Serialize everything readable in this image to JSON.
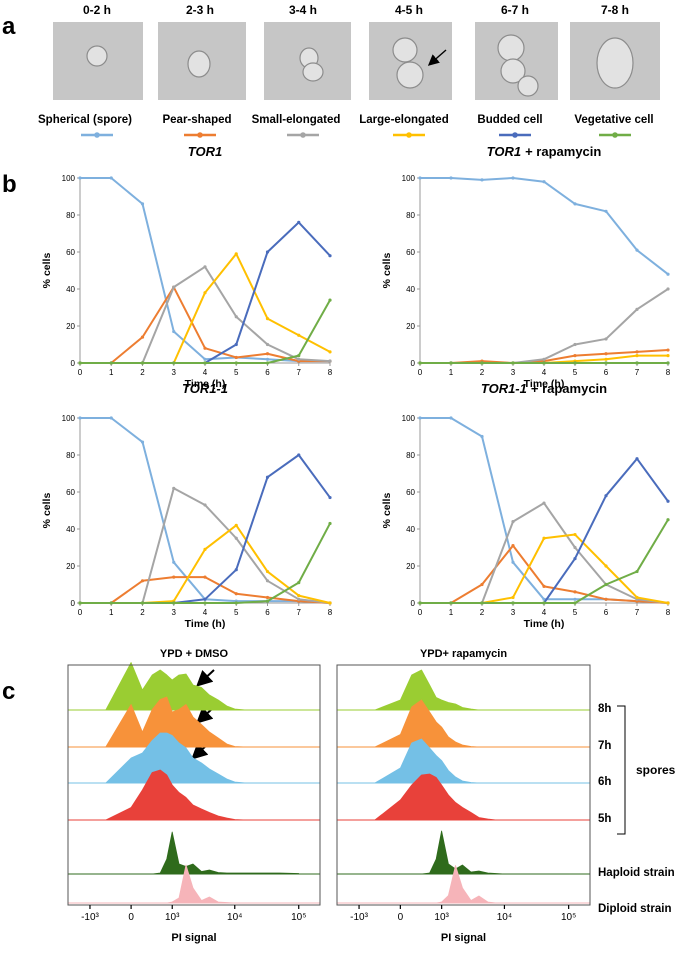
{
  "panel_labels": [
    "a",
    "b",
    "c"
  ],
  "stages": [
    {
      "time": "0-2 h",
      "label": "Spherical (spore)",
      "color": "#7eb0de"
    },
    {
      "time": "2-3 h",
      "label": "Pear-shaped",
      "color": "#ed7d31"
    },
    {
      "time": "3-4 h",
      "label": "Small-elongated",
      "color": "#a5a5a5"
    },
    {
      "time": "4-5 h",
      "label": "Large-elongated",
      "color": "#ffc000"
    },
    {
      "time": "6-7 h",
      "label": "Budded cell",
      "color": "#4a6cbc"
    },
    {
      "time": "7-8 h",
      "label": "Vegetative cell",
      "color": "#70ad47"
    }
  ],
  "flow_rows": [
    {
      "label": "8h",
      "color": "#9acd32"
    },
    {
      "label": "7h",
      "color": "#f7923a"
    },
    {
      "label": "6h",
      "color": "#74c0e6"
    },
    {
      "label": "5h",
      "color": "#e8413a"
    },
    {
      "label": "Haploid strain",
      "color": "#2f6b1c"
    },
    {
      "label": "Diploid strain",
      "color": "#f6b4b9"
    }
  ],
  "spores_label": "spores",
  "chart_data": [
    {
      "type": "line",
      "title_gene": "TOR1",
      "xlabel": "Time (h)",
      "ylabel": "% cells",
      "x": [
        0,
        1,
        2,
        3,
        4,
        5,
        6,
        7,
        8
      ],
      "xlim": [
        0,
        8
      ],
      "xticks": [
        0,
        1,
        2,
        3,
        4,
        5,
        6,
        7,
        8
      ],
      "ylim": [
        0,
        100
      ],
      "yticks": [
        0,
        20,
        40,
        60,
        80,
        100
      ],
      "series": [
        {
          "values": [
            100,
            100,
            86,
            17,
            2,
            3,
            2,
            1,
            1
          ]
        },
        {
          "values": [
            0,
            0,
            14,
            41,
            8,
            3,
            5,
            1,
            1
          ]
        },
        {
          "values": [
            0,
            0,
            0,
            41,
            52,
            25,
            10,
            2,
            1
          ]
        },
        {
          "values": [
            0,
            0,
            0,
            0,
            38,
            59,
            24,
            15,
            6
          ]
        },
        {
          "values": [
            0,
            0,
            0,
            0,
            0,
            10,
            60,
            76,
            58
          ]
        },
        {
          "values": [
            0,
            0,
            0,
            0,
            0,
            0,
            0,
            4,
            34
          ]
        }
      ]
    },
    {
      "type": "line",
      "title_gene": "TOR1",
      "title_treatment": "+ rapamycin",
      "xlabel": "Time (h)",
      "ylabel": "% cells",
      "x": [
        0,
        1,
        2,
        3,
        4,
        5,
        6,
        7,
        8
      ],
      "xlim": [
        0,
        8
      ],
      "xticks": [
        0,
        1,
        2,
        3,
        4,
        5,
        6,
        7,
        8
      ],
      "ylim": [
        0,
        100
      ],
      "yticks": [
        0,
        20,
        40,
        60,
        80,
        100
      ],
      "series": [
        {
          "values": [
            100,
            100,
            99,
            100,
            98,
            86,
            82,
            61,
            48
          ]
        },
        {
          "values": [
            0,
            0,
            1,
            0,
            1,
            4,
            5,
            6,
            7
          ]
        },
        {
          "values": [
            0,
            0,
            0,
            0,
            2,
            10,
            13,
            29,
            40
          ]
        },
        {
          "values": [
            0,
            0,
            0,
            0,
            0,
            1,
            2,
            4,
            4
          ]
        },
        {
          "values": [
            0,
            0,
            0,
            0,
            0,
            0,
            0,
            0,
            0
          ]
        },
        {
          "values": [
            0,
            0,
            0,
            0,
            0,
            0,
            0,
            0,
            0
          ]
        }
      ]
    },
    {
      "type": "line",
      "title_gene": "TOR1-1",
      "xlabel": "Time (h)",
      "ylabel": "% cells",
      "x": [
        0,
        1,
        2,
        3,
        4,
        5,
        6,
        7,
        8
      ],
      "xlim": [
        0,
        8
      ],
      "xticks": [
        0,
        1,
        2,
        3,
        4,
        5,
        6,
        7,
        8
      ],
      "ylim": [
        0,
        100
      ],
      "yticks": [
        0,
        20,
        40,
        60,
        80,
        100
      ],
      "series": [
        {
          "values": [
            100,
            100,
            87,
            22,
            2,
            1,
            1,
            1,
            0
          ]
        },
        {
          "values": [
            0,
            0,
            12,
            14,
            14,
            5,
            3,
            1,
            0
          ]
        },
        {
          "values": [
            0,
            0,
            0,
            62,
            53,
            35,
            12,
            2,
            0
          ]
        },
        {
          "values": [
            0,
            0,
            0,
            1,
            29,
            42,
            17,
            4,
            0
          ]
        },
        {
          "values": [
            0,
            0,
            0,
            0,
            2,
            18,
            68,
            80,
            57
          ]
        },
        {
          "values": [
            0,
            0,
            0,
            0,
            0,
            0,
            1,
            11,
            43
          ]
        }
      ]
    },
    {
      "type": "line",
      "title_gene": "TOR1-1",
      "title_treatment": "+ rapamycin",
      "xlabel": "Time (h)",
      "ylabel": "% cells",
      "x": [
        0,
        1,
        2,
        3,
        4,
        5,
        6,
        7,
        8
      ],
      "xlim": [
        0,
        8
      ],
      "xticks": [
        0,
        1,
        2,
        3,
        4,
        5,
        6,
        7,
        8
      ],
      "ylim": [
        0,
        100
      ],
      "yticks": [
        0,
        20,
        40,
        60,
        80,
        100
      ],
      "series": [
        {
          "values": [
            100,
            100,
            90,
            22,
            2,
            2,
            2,
            1,
            0
          ]
        },
        {
          "values": [
            0,
            0,
            10,
            31,
            9,
            6,
            2,
            1,
            0
          ]
        },
        {
          "values": [
            0,
            0,
            0,
            44,
            54,
            30,
            10,
            2,
            0
          ]
        },
        {
          "values": [
            0,
            0,
            0,
            3,
            35,
            37,
            20,
            3,
            0
          ]
        },
        {
          "values": [
            0,
            0,
            0,
            0,
            0,
            24,
            58,
            78,
            55
          ]
        },
        {
          "values": [
            0,
            0,
            0,
            0,
            0,
            0,
            10,
            17,
            45
          ]
        }
      ]
    },
    {
      "type": "area",
      "title": "YPD + DMSO",
      "xlabel": "PI signal",
      "xscale": "asinh",
      "linthresh": 480,
      "xlim": [
        -2300,
        215000
      ],
      "xticks": [
        {
          "value": -1000,
          "label": "-10³"
        },
        0,
        {
          "value": 1000,
          "label": "10³"
        },
        {
          "value": 10000,
          "label": "10⁴"
        },
        {
          "value": 100000,
          "label": "10⁵"
        }
      ],
      "x": [
        -1000,
        -500,
        0,
        200,
        400,
        600,
        800,
        1000,
        1300,
        1700,
        2200,
        3000,
        4000,
        5500,
        7500,
        10000,
        15000,
        25000,
        50000,
        100000
      ],
      "ylim": [
        0,
        100
      ],
      "series": [
        {
          "values": [
            0,
            0,
            95,
            40,
            70,
            80,
            70,
            60,
            70,
            72,
            50,
            45,
            30,
            20,
            8,
            2,
            0,
            0,
            0,
            0
          ]
        },
        {
          "values": [
            0,
            0,
            85,
            30,
            75,
            95,
            100,
            70,
            75,
            85,
            60,
            45,
            30,
            18,
            6,
            1,
            0,
            0,
            0,
            0
          ]
        },
        {
          "values": [
            0,
            0,
            50,
            60,
            85,
            100,
            100,
            95,
            80,
            70,
            50,
            40,
            28,
            18,
            8,
            2,
            0,
            0,
            0,
            0
          ]
        },
        {
          "values": [
            0,
            0,
            25,
            60,
            95,
            100,
            90,
            70,
            55,
            45,
            30,
            22,
            15,
            8,
            4,
            1,
            0,
            0,
            0,
            0
          ]
        },
        {
          "values": [
            0,
            0,
            0,
            0,
            0,
            2,
            30,
            84,
            20,
            15,
            20,
            5,
            8,
            3,
            2,
            2,
            2,
            2,
            2,
            1
          ]
        },
        {
          "values": [
            0,
            0,
            0,
            0,
            0,
            0,
            0,
            2,
            10,
            76,
            30,
            5,
            12,
            2,
            1,
            0,
            0,
            0,
            0,
            0
          ]
        }
      ]
    },
    {
      "type": "area",
      "title": "YPD+ rapamycin",
      "xlabel": "PI signal",
      "xscale": "asinh",
      "linthresh": 480,
      "xlim": [
        -2300,
        215000
      ],
      "xticks": [
        {
          "value": -1000,
          "label": "-10³"
        },
        0,
        {
          "value": 1000,
          "label": "10³"
        },
        {
          "value": 10000,
          "label": "10⁴"
        },
        {
          "value": 100000,
          "label": "10⁵"
        }
      ],
      "x": [
        -1000,
        -500,
        0,
        200,
        400,
        600,
        800,
        1000,
        1300,
        1700,
        2200,
        3000,
        4000,
        5500,
        7500,
        10000,
        15000,
        25000,
        50000,
        100000
      ],
      "ylim": [
        0,
        100
      ],
      "series": [
        {
          "values": [
            0,
            0,
            20,
            70,
            80,
            50,
            25,
            20,
            15,
            12,
            5,
            2,
            0,
            0,
            0,
            0,
            0,
            0,
            0,
            0
          ]
        },
        {
          "values": [
            0,
            0,
            25,
            80,
            94,
            70,
            50,
            40,
            20,
            10,
            4,
            1,
            0,
            0,
            0,
            0,
            0,
            0,
            0,
            0
          ]
        },
        {
          "values": [
            0,
            0,
            30,
            80,
            88,
            70,
            55,
            45,
            25,
            12,
            4,
            1,
            0,
            0,
            0,
            0,
            0,
            0,
            0,
            0
          ]
        },
        {
          "values": [
            0,
            0,
            40,
            70,
            90,
            92,
            85,
            70,
            50,
            35,
            25,
            15,
            5,
            2,
            0,
            0,
            0,
            0,
            0,
            0
          ]
        },
        {
          "values": [
            0,
            0,
            0,
            0,
            0,
            2,
            30,
            86,
            20,
            10,
            18,
            4,
            6,
            2,
            1,
            0,
            0,
            0,
            0,
            0
          ]
        },
        {
          "values": [
            0,
            0,
            0,
            0,
            0,
            0,
            0,
            2,
            15,
            75,
            30,
            5,
            14,
            2,
            0,
            0,
            0,
            0,
            0,
            0
          ]
        }
      ]
    }
  ]
}
